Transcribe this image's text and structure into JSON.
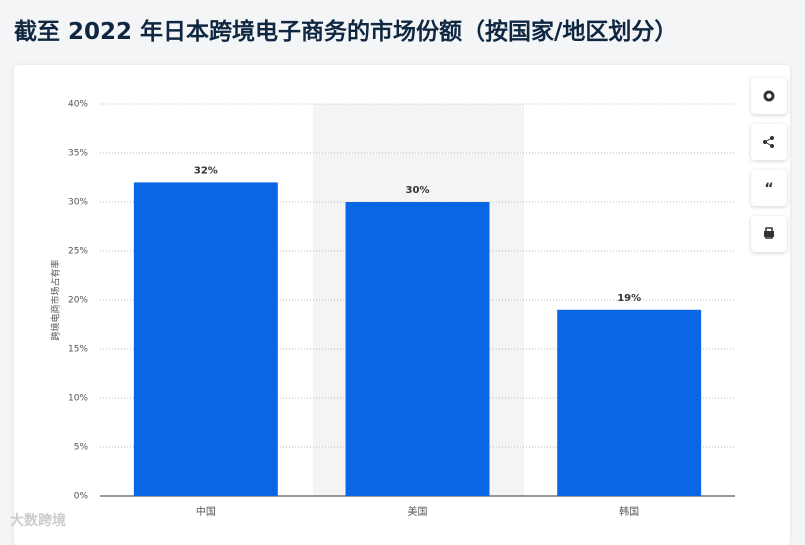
{
  "chart_data": {
    "type": "bar",
    "title": "截至 2022 年日本跨境电子商务的市场份额（按国家/地区划分）",
    "y_axis_label": "跨境电商市场占有率",
    "categories": [
      "中国",
      "美国",
      "韩国"
    ],
    "values": [
      32,
      30,
      19
    ],
    "value_labels": [
      "32%",
      "30%",
      "19%"
    ],
    "color": "#0a66e4",
    "ylim": [
      0,
      40
    ],
    "yticks": [
      {
        "value": 0,
        "label": "0%"
      },
      {
        "value": 5,
        "label": "5%"
      },
      {
        "value": 10,
        "label": "10%"
      },
      {
        "value": 15,
        "label": "15%"
      },
      {
        "value": 20,
        "label": "20%"
      },
      {
        "value": 25,
        "label": "25%"
      },
      {
        "value": 30,
        "label": "30%"
      },
      {
        "value": 35,
        "label": "35%"
      },
      {
        "value": 40,
        "label": "40%"
      }
    ],
    "grid": true,
    "watermark": "大数跨境"
  }
}
